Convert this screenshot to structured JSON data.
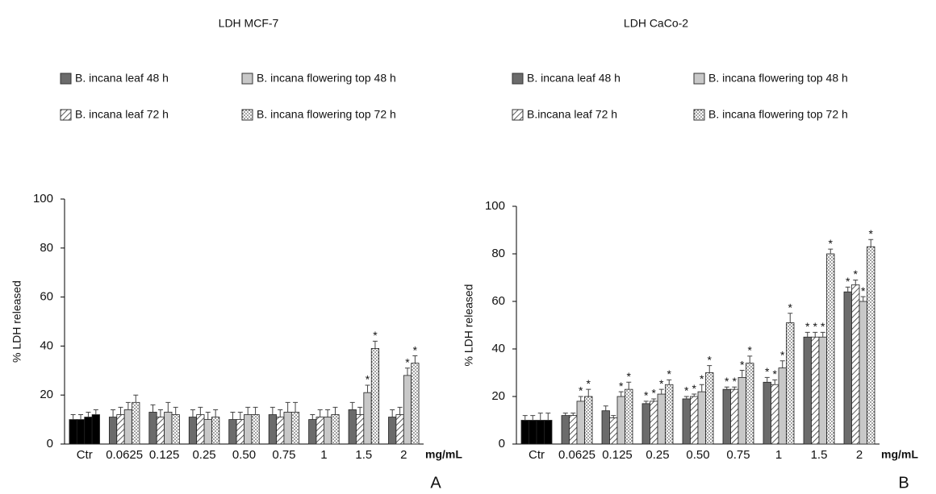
{
  "chart_data": [
    {
      "type": "bar",
      "title": "LDH  MCF-7",
      "panel_label": "A",
      "y_label": "% LDH released",
      "x_label": "mg/mL",
      "categories": [
        "Ctr",
        "0.0625",
        "0.125",
        "0.25",
        "0.50",
        "0.75",
        "1",
        "1.5",
        "2"
      ],
      "ylim": [
        0,
        100
      ],
      "yticks": [
        0,
        20,
        40,
        60,
        80,
        100
      ],
      "control_color": "#000000",
      "series": [
        {
          "name": "B. incana leaf 48 h",
          "color": "#6b6b6b",
          "pattern": "solid",
          "values": [
            10,
            11,
            13,
            11,
            10,
            12,
            10,
            14,
            11
          ],
          "errors": [
            2,
            3,
            3,
            3,
            3,
            3,
            2,
            3,
            3
          ],
          "annotations": [
            null,
            null,
            null,
            null,
            null,
            null,
            null,
            null,
            null
          ]
        },
        {
          "name": "B. incana leaf 72 h",
          "color": "#333333",
          "pattern": "hatch",
          "values": [
            10,
            12,
            11,
            12,
            10,
            11,
            11,
            12,
            12
          ],
          "errors": [
            2,
            3,
            3,
            3,
            3,
            3,
            3,
            3,
            3
          ],
          "annotations": [
            null,
            null,
            null,
            null,
            null,
            null,
            null,
            null,
            null
          ]
        },
        {
          "name": "B. incana flowering top 48 h",
          "color": "#c8c8c8",
          "pattern": "solid",
          "values": [
            11,
            14,
            13,
            10,
            12,
            13,
            11,
            21,
            28
          ],
          "errors": [
            2,
            3,
            4,
            3,
            3,
            4,
            3,
            3,
            3
          ],
          "annotations": [
            null,
            null,
            null,
            null,
            null,
            null,
            null,
            "*",
            "*"
          ]
        },
        {
          "name": "B. incana flowering top 72 h",
          "color": "#333333",
          "pattern": "dots",
          "values": [
            12,
            17,
            12,
            11,
            12,
            13,
            12,
            39,
            33
          ],
          "errors": [
            2,
            3,
            3,
            3,
            3,
            4,
            3,
            3,
            3
          ],
          "annotations": [
            null,
            null,
            null,
            null,
            null,
            null,
            null,
            "*",
            "*"
          ]
        }
      ]
    },
    {
      "type": "bar",
      "title": "LDH CaCo-2",
      "panel_label": "B",
      "y_label": "% LDH released",
      "x_label": "mg/mL",
      "categories": [
        "Ctr",
        "0.0625",
        "0.125",
        "0.25",
        "0.50",
        "0.75",
        "1",
        "1.5",
        "2"
      ],
      "ylim": [
        0,
        100
      ],
      "yticks": [
        0,
        20,
        40,
        60,
        80,
        100
      ],
      "control_color": "#000000",
      "series": [
        {
          "name": "B. incana leaf 48 h",
          "color": "#6b6b6b",
          "pattern": "solid",
          "values": [
            10,
            12,
            14,
            17,
            19,
            23,
            26,
            45,
            64
          ],
          "errors": [
            2,
            1,
            2,
            1,
            1,
            1,
            2,
            2,
            2
          ],
          "annotations": [
            null,
            null,
            null,
            "*",
            "*",
            "*",
            "*",
            "*",
            "*"
          ]
        },
        {
          "name": "B.incana leaf 72 h",
          "color": "#333333",
          "pattern": "hatch",
          "values": [
            10,
            12,
            11,
            18,
            20,
            23,
            25,
            45,
            67
          ],
          "errors": [
            2,
            1,
            1,
            1,
            1,
            1,
            2,
            2,
            2
          ],
          "annotations": [
            null,
            null,
            null,
            "*",
            "*",
            "*",
            "*",
            "*",
            "*"
          ]
        },
        {
          "name": "B. incana flowering top 48 h",
          "color": "#c8c8c8",
          "pattern": "solid",
          "values": [
            10,
            18,
            20,
            21,
            22,
            28,
            32,
            45,
            60
          ],
          "errors": [
            3,
            2,
            2,
            2,
            3,
            3,
            3,
            2,
            2
          ],
          "annotations": [
            null,
            "*",
            "*",
            "*",
            "*",
            "*",
            "*",
            "*",
            "*"
          ]
        },
        {
          "name": "B. incana flowering top 72 h",
          "color": "#333333",
          "pattern": "dots",
          "values": [
            10,
            20,
            23,
            25,
            30,
            34,
            51,
            80,
            83
          ],
          "errors": [
            3,
            3,
            3,
            2,
            3,
            3,
            4,
            2,
            3
          ],
          "annotations": [
            null,
            "*",
            "*",
            "*",
            "*",
            "*",
            "*",
            "*",
            "*"
          ]
        }
      ]
    }
  ]
}
